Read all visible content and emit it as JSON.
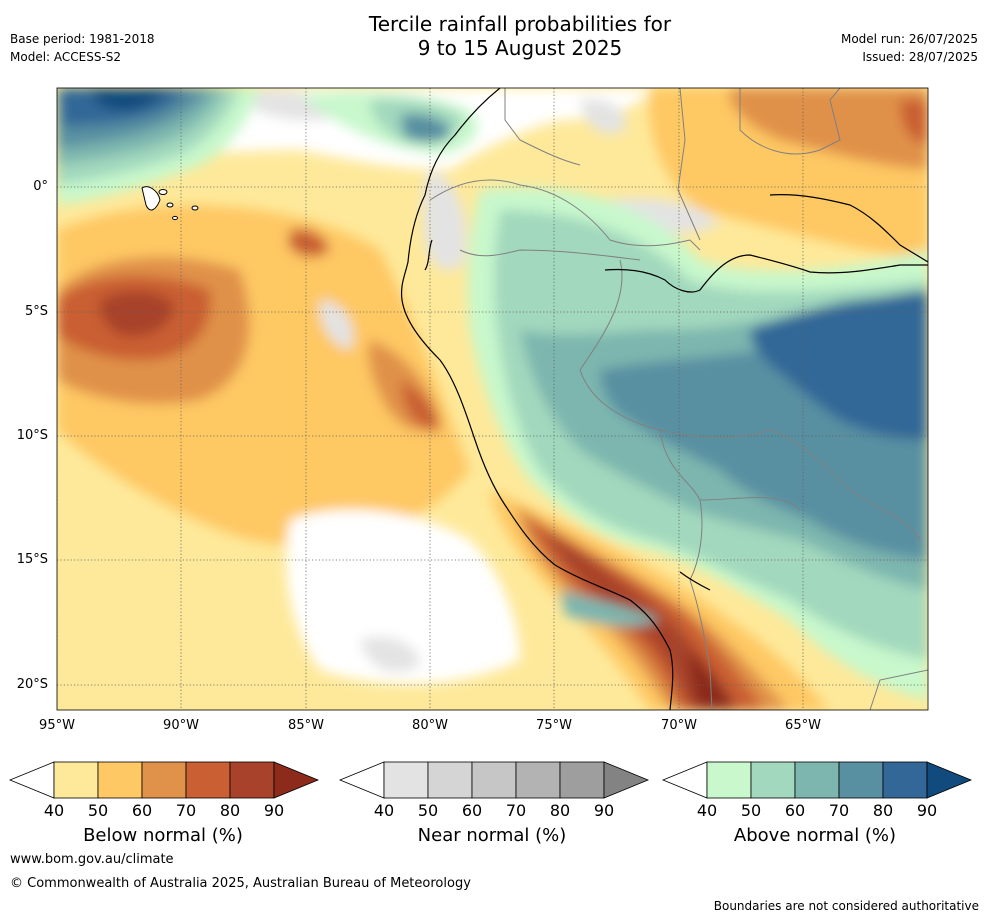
{
  "header": {
    "title_line1": "Tercile rainfall probabilities for",
    "title_line2": "9 to 15 August 2025",
    "base_period": "Base period: 1981-2018",
    "model": "Model: ACCESS-S2",
    "model_run": "Model run: 26/07/2025",
    "issued": "Issued: 28/07/2025"
  },
  "map": {
    "lon_range": [
      -95,
      -60
    ],
    "lat_range": [
      -21,
      4
    ],
    "lat_ticks": [
      {
        "value": 0,
        "label": "0°"
      },
      {
        "value": -5,
        "label": "5°S"
      },
      {
        "value": -10,
        "label": "10°S"
      },
      {
        "value": -15,
        "label": "15°S"
      },
      {
        "value": -20,
        "label": "20°S"
      }
    ],
    "lon_ticks": [
      {
        "value": -95,
        "label": "95°W"
      },
      {
        "value": -90,
        "label": "90°W"
      },
      {
        "value": -85,
        "label": "85°W"
      },
      {
        "value": -80,
        "label": "80°W"
      },
      {
        "value": -75,
        "label": "75°W"
      },
      {
        "value": -70,
        "label": "70°W"
      },
      {
        "value": -65,
        "label": "65°W"
      }
    ],
    "gridlines": true
  },
  "colorbars": [
    {
      "label": "Below normal (%)",
      "ticks": [
        "40",
        "50",
        "60",
        "70",
        "80",
        "90"
      ],
      "colors": [
        "#ffffff",
        "#fee99a",
        "#fec864",
        "#e0914a",
        "#c95f33",
        "#a8422a",
        "#8c2a1c"
      ]
    },
    {
      "label": "Near normal (%)",
      "ticks": [
        "40",
        "50",
        "60",
        "70",
        "80",
        "90"
      ],
      "colors": [
        "#ffffff",
        "#e3e3e3",
        "#d5d5d5",
        "#c6c6c6",
        "#b3b3b3",
        "#9e9e9e",
        "#838383"
      ]
    },
    {
      "label": "Above normal (%)",
      "ticks": [
        "40",
        "50",
        "60",
        "70",
        "80",
        "90"
      ],
      "colors": [
        "#ffffff",
        "#c8f8cc",
        "#a2d8bd",
        "#7db6af",
        "#5890a2",
        "#336797",
        "#114a7c"
      ]
    }
  ],
  "footer": {
    "website": "www.bom.gov.au/climate",
    "copyright": "© Commonwealth of Australia 2025, Australian Bureau of Meteorology",
    "disclaimer": "Boundaries are not considered authoritative"
  }
}
